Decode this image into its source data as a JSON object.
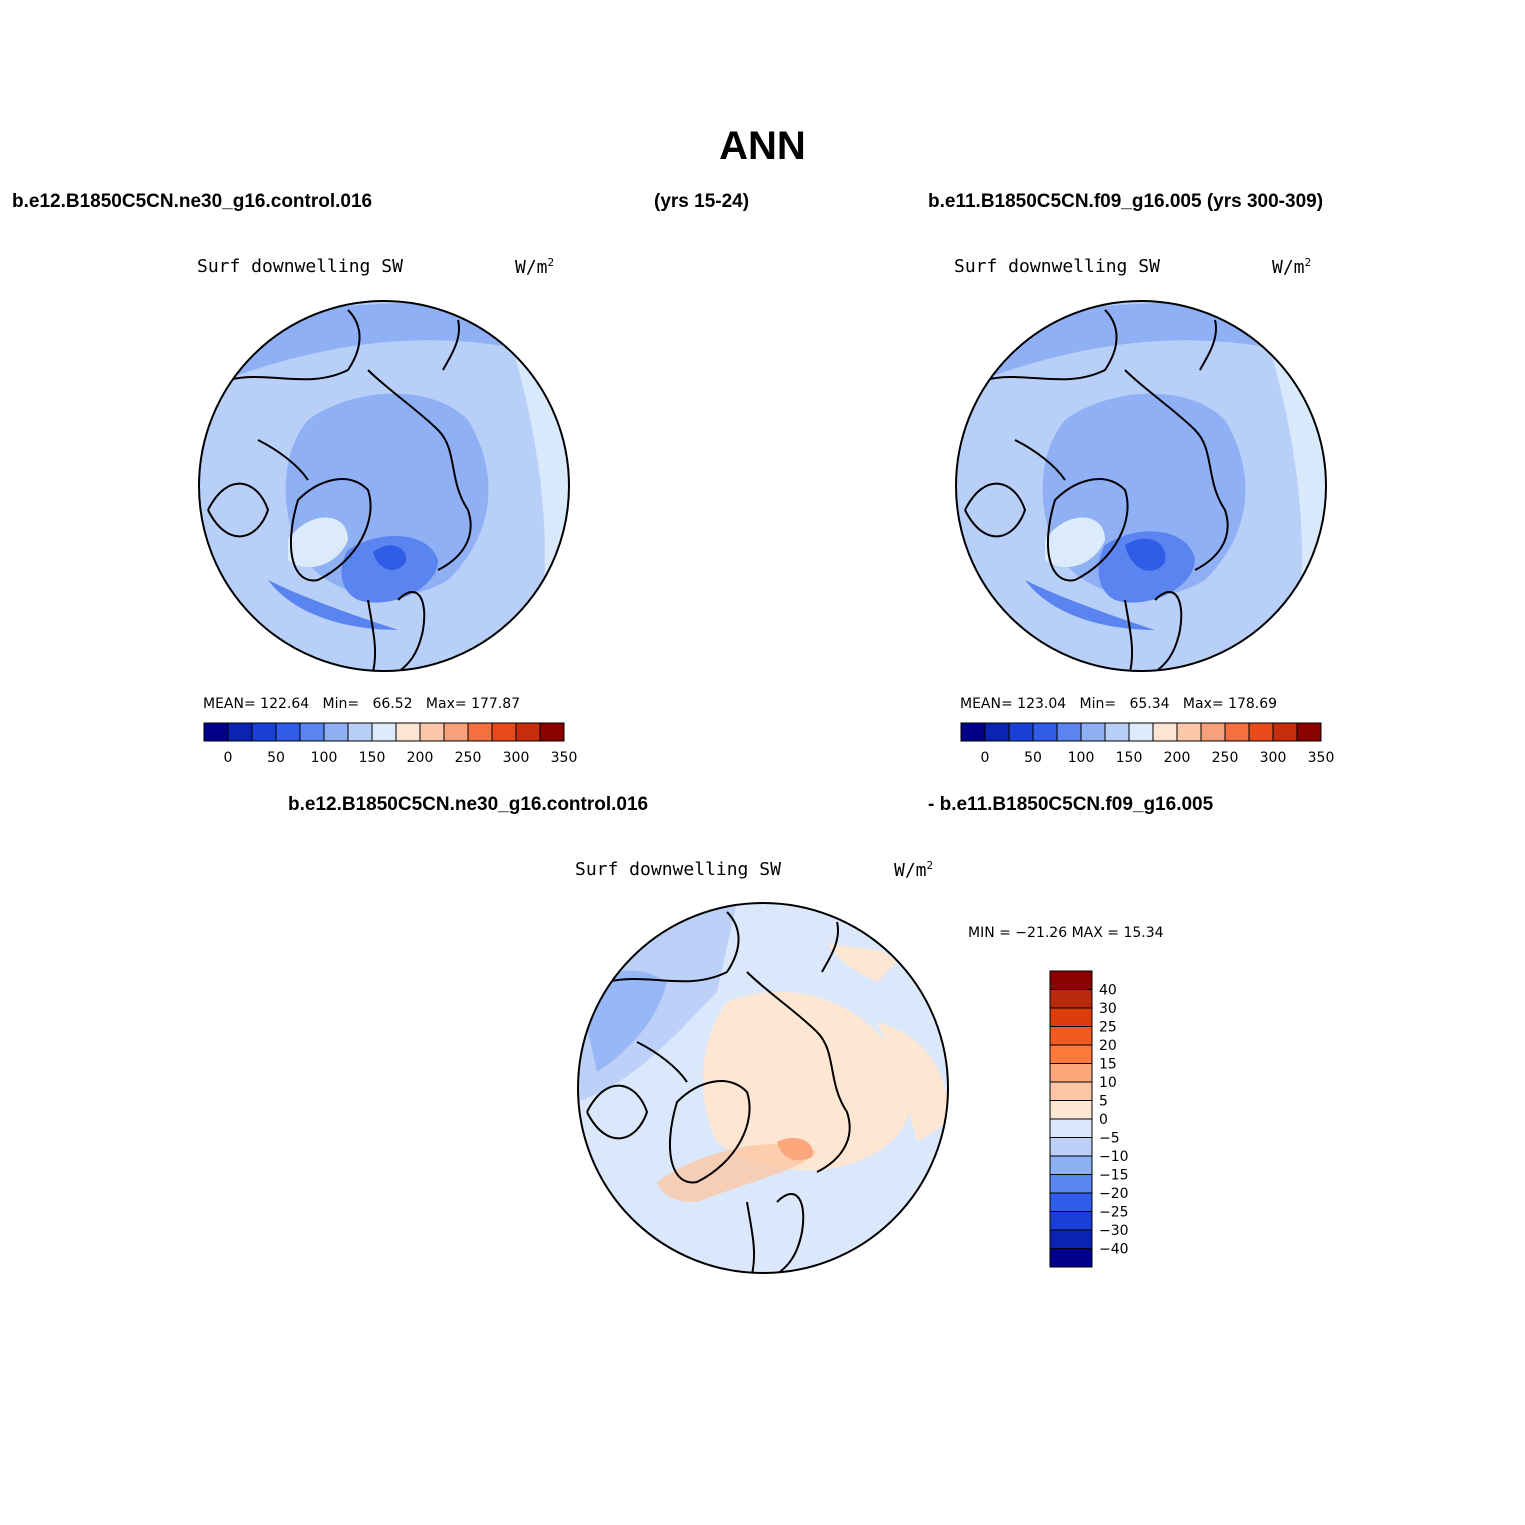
{
  "title": "ANN",
  "header": {
    "case1": "b.e12.B1850C5CN.ne30_g16.control.016",
    "case1_years": "(yrs 15-24)",
    "case2": "b.e11.B1850C5CN.f09_g16.005 (yrs 300-309)",
    "diff_left": "b.e12.B1850C5CN.ne30_g16.control.016",
    "diff_right": "- b.e11.B1850C5CN.f09_g16.005"
  },
  "panels": [
    {
      "variable": "Surf downwelling SW",
      "units_base": "W/m",
      "units_exp": "2",
      "stats": {
        "mean_label": "MEAN=",
        "mean": "122.64",
        "min_label": "Min=",
        "min": "66.52",
        "max_label": "Max=",
        "max": "177.87"
      }
    },
    {
      "variable": "Surf downwelling SW",
      "units_base": "W/m",
      "units_exp": "2",
      "stats": {
        "mean_label": "MEAN=",
        "mean": "123.04",
        "min_label": "Min=",
        "min": "65.34",
        "max_label": "Max=",
        "max": "178.69"
      }
    }
  ],
  "diff_panel": {
    "variable": "Surf downwelling SW",
    "units_base": "W/m",
    "units_exp": "2",
    "stats_text": "MIN = −21.26 MAX =  15.34"
  },
  "abs_colorbar": {
    "colors": [
      "#00008b",
      "#0b23b4",
      "#1a3fd6",
      "#2f5de8",
      "#5a84ef",
      "#8fb0f5",
      "#b8cff8",
      "#dcebfc",
      "#fde6d4",
      "#fbc7a8",
      "#f8a07a",
      "#f47040",
      "#e84a1c",
      "#c52d0b",
      "#8b0000"
    ],
    "labels": [
      "0",
      "50",
      "100",
      "150",
      "200",
      "250",
      "300",
      "350"
    ]
  },
  "diff_colorbar": {
    "colors": [
      "#8b0000",
      "#b82a0b",
      "#dd3c0b",
      "#f25a21",
      "#ff7a3b",
      "#fca67c",
      "#fcc7a5",
      "#fde6d2",
      "#dbe8fb",
      "#bcd0f8",
      "#8db0f5",
      "#5a86f0",
      "#2f5ce8",
      "#1a3fd6",
      "#0b23b4",
      "#00008b"
    ],
    "labels": [
      "40",
      "30",
      "25",
      "20",
      "15",
      "10",
      "5",
      "0",
      "−5",
      "−10",
      "−15",
      "−20",
      "−25",
      "−30",
      "−40"
    ]
  }
}
